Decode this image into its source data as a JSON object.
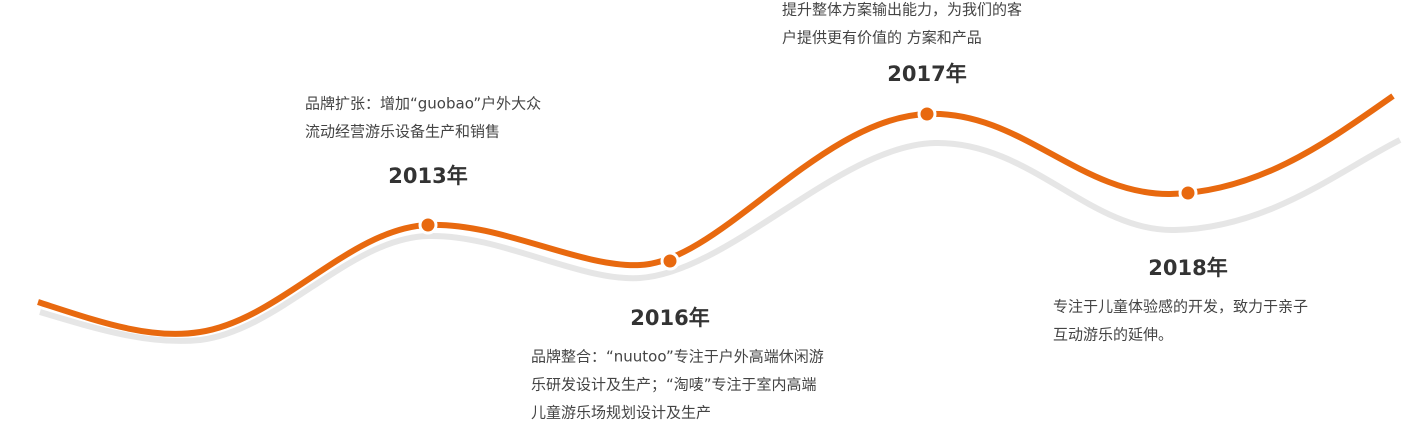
{
  "milestones": [
    {
      "year": "2013年",
      "description": [
        "品牌扩张：增加“guobao”户外大众",
        "流动经营游乐设备生产和销售"
      ]
    },
    {
      "year": "2016年",
      "description": [
        "品牌整合：“nuutoo”专注于户外高端休闲游",
        "乐研发设计及生产；“淘唛”专注于室内高端",
        "儿童游乐场规划设计及生产"
      ]
    },
    {
      "year": "2017年",
      "description": [
        "提升整体方案输出能力，为我们的客",
        "户提供更有价值的 方案和产品"
      ]
    },
    {
      "year": "2018年",
      "description": [
        "专注于儿童体验感的开发，致力于亲子",
        "互动游乐的延伸。"
      ]
    }
  ]
}
